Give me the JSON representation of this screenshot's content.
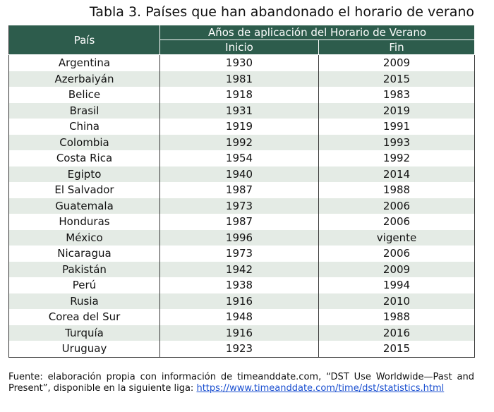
{
  "title": "Tabla 3. Países que han abandonado el horario de verano",
  "table": {
    "header": {
      "country": "País",
      "group": "Años de aplicación del Horario de Verano",
      "start": "Inicio",
      "end": "Fin"
    },
    "rows": [
      [
        "Argentina",
        "1930",
        "2009"
      ],
      [
        "Azerbaiyán",
        "1981",
        "2015"
      ],
      [
        "Belice",
        "1918",
        "1983"
      ],
      [
        "Brasil",
        "1931",
        "2019"
      ],
      [
        "China",
        "1919",
        "1991"
      ],
      [
        "Colombia",
        "1992",
        "1993"
      ],
      [
        "Costa Rica",
        "1954",
        "1992"
      ],
      [
        "Egipto",
        "1940",
        "2014"
      ],
      [
        "El Salvador",
        "1987",
        "1988"
      ],
      [
        "Guatemala",
        "1973",
        "2006"
      ],
      [
        "Honduras",
        "1987",
        "2006"
      ],
      [
        "México",
        "1996",
        "vigente"
      ],
      [
        "Nicaragua",
        "1973",
        "2006"
      ],
      [
        "Pakistán",
        "1942",
        "2009"
      ],
      [
        "Perú",
        "1938",
        "1994"
      ],
      [
        "Rusia",
        "1916",
        "2010"
      ],
      [
        "Corea del Sur",
        "1948",
        "1988"
      ],
      [
        "Turquía",
        "1916",
        "2016"
      ],
      [
        "Uruguay",
        "1923",
        "2015"
      ]
    ]
  },
  "footnote": {
    "text": "Fuente: elaboración propia con información de timeanddate.com, “DST Use Worldwide—Past and Present”, disponible en la siguiente liga:",
    "link": "https://www.timeanddate.com/time/dst/statistics.html"
  }
}
